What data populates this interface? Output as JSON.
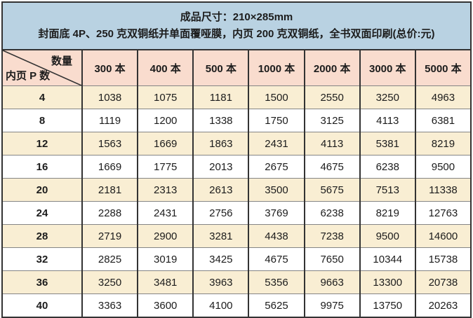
{
  "banner": {
    "line1": "成品尺寸：210×285mm",
    "line2": "封面底 4P、250 克双铜纸并单面覆哑膜，内页 200 克双铜纸，全书双面印刷(总价:元)"
  },
  "table": {
    "corner": {
      "top_label": "数量",
      "bottom_label": "内页 P 数"
    },
    "quantity_headers": [
      "300 本",
      "400 本",
      "500 本",
      "1000 本",
      "2000 本",
      "3000 本",
      "5000 本"
    ],
    "rows": [
      {
        "pages": "4",
        "prices": [
          "1038",
          "1075",
          "1181",
          "1500",
          "2550",
          "3250",
          "4963"
        ]
      },
      {
        "pages": "8",
        "prices": [
          "1119",
          "1200",
          "1338",
          "1750",
          "3125",
          "4113",
          "6381"
        ]
      },
      {
        "pages": "12",
        "prices": [
          "1563",
          "1669",
          "1863",
          "2431",
          "4113",
          "5381",
          "8219"
        ]
      },
      {
        "pages": "16",
        "prices": [
          "1669",
          "1775",
          "2013",
          "2675",
          "4675",
          "6238",
          "9500"
        ]
      },
      {
        "pages": "20",
        "prices": [
          "2181",
          "2313",
          "2613",
          "3500",
          "5675",
          "7513",
          "11338"
        ]
      },
      {
        "pages": "24",
        "prices": [
          "2288",
          "2431",
          "2756",
          "3769",
          "6238",
          "8219",
          "12763"
        ]
      },
      {
        "pages": "28",
        "prices": [
          "2719",
          "2900",
          "3281",
          "4438",
          "7238",
          "9500",
          "14600"
        ]
      },
      {
        "pages": "32",
        "prices": [
          "2825",
          "3019",
          "3425",
          "4675",
          "7650",
          "10344",
          "15738"
        ]
      },
      {
        "pages": "36",
        "prices": [
          "3250",
          "3481",
          "3963",
          "5356",
          "9663",
          "13300",
          "20738"
        ]
      },
      {
        "pages": "40",
        "prices": [
          "3363",
          "3600",
          "4100",
          "5625",
          "9975",
          "13750",
          "20263"
        ]
      }
    ]
  },
  "colors": {
    "banner_bg": "#b9d2e2",
    "colhead_bg": "#f9dcce",
    "row_alt_bg": "#f9eed3",
    "row_bg": "#ffffff",
    "border_dark": "#333333",
    "border_light": "#858585"
  }
}
